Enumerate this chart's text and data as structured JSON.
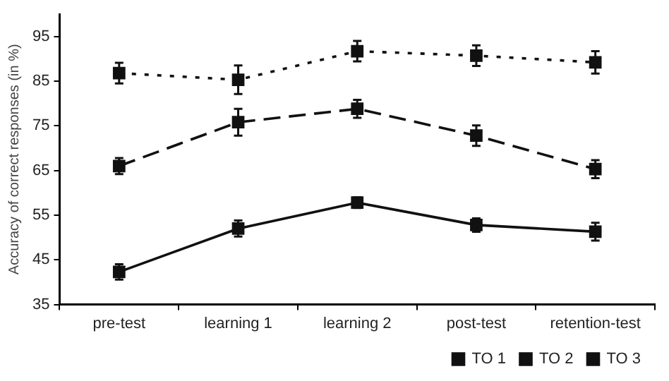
{
  "chart_data": {
    "type": "line",
    "ylabel": "Accuracy of correct responses (in %)",
    "categories": [
      "pre-test",
      "learning 1",
      "learning 2",
      "post-test",
      "retention-test"
    ],
    "ylim": [
      35,
      100
    ],
    "yticks": [
      35,
      45,
      55,
      65,
      75,
      85,
      95
    ],
    "grid": false,
    "legend": "bottom right",
    "marker": "square",
    "series": [
      {
        "name": "TO 1",
        "color": "#111111",
        "line_style": "solid",
        "values": [
          42.3,
          52,
          57.8,
          52.8,
          51.3
        ],
        "errors": [
          1.7,
          1.8,
          1.2,
          1.5,
          2
        ]
      },
      {
        "name": "TO 2",
        "color": "#111111",
        "line_style": "dashed",
        "values": [
          66,
          75.8,
          78.8,
          72.8,
          65.3
        ],
        "errors": [
          1.8,
          3,
          2,
          2.3,
          2
        ]
      },
      {
        "name": "TO 3",
        "color": "#111111",
        "line_style": "dotted",
        "values": [
          86.8,
          85.3,
          91.7,
          90.7,
          89.2
        ],
        "errors": [
          2.3,
          3.2,
          2.3,
          2.3,
          2.5
        ]
      }
    ]
  }
}
